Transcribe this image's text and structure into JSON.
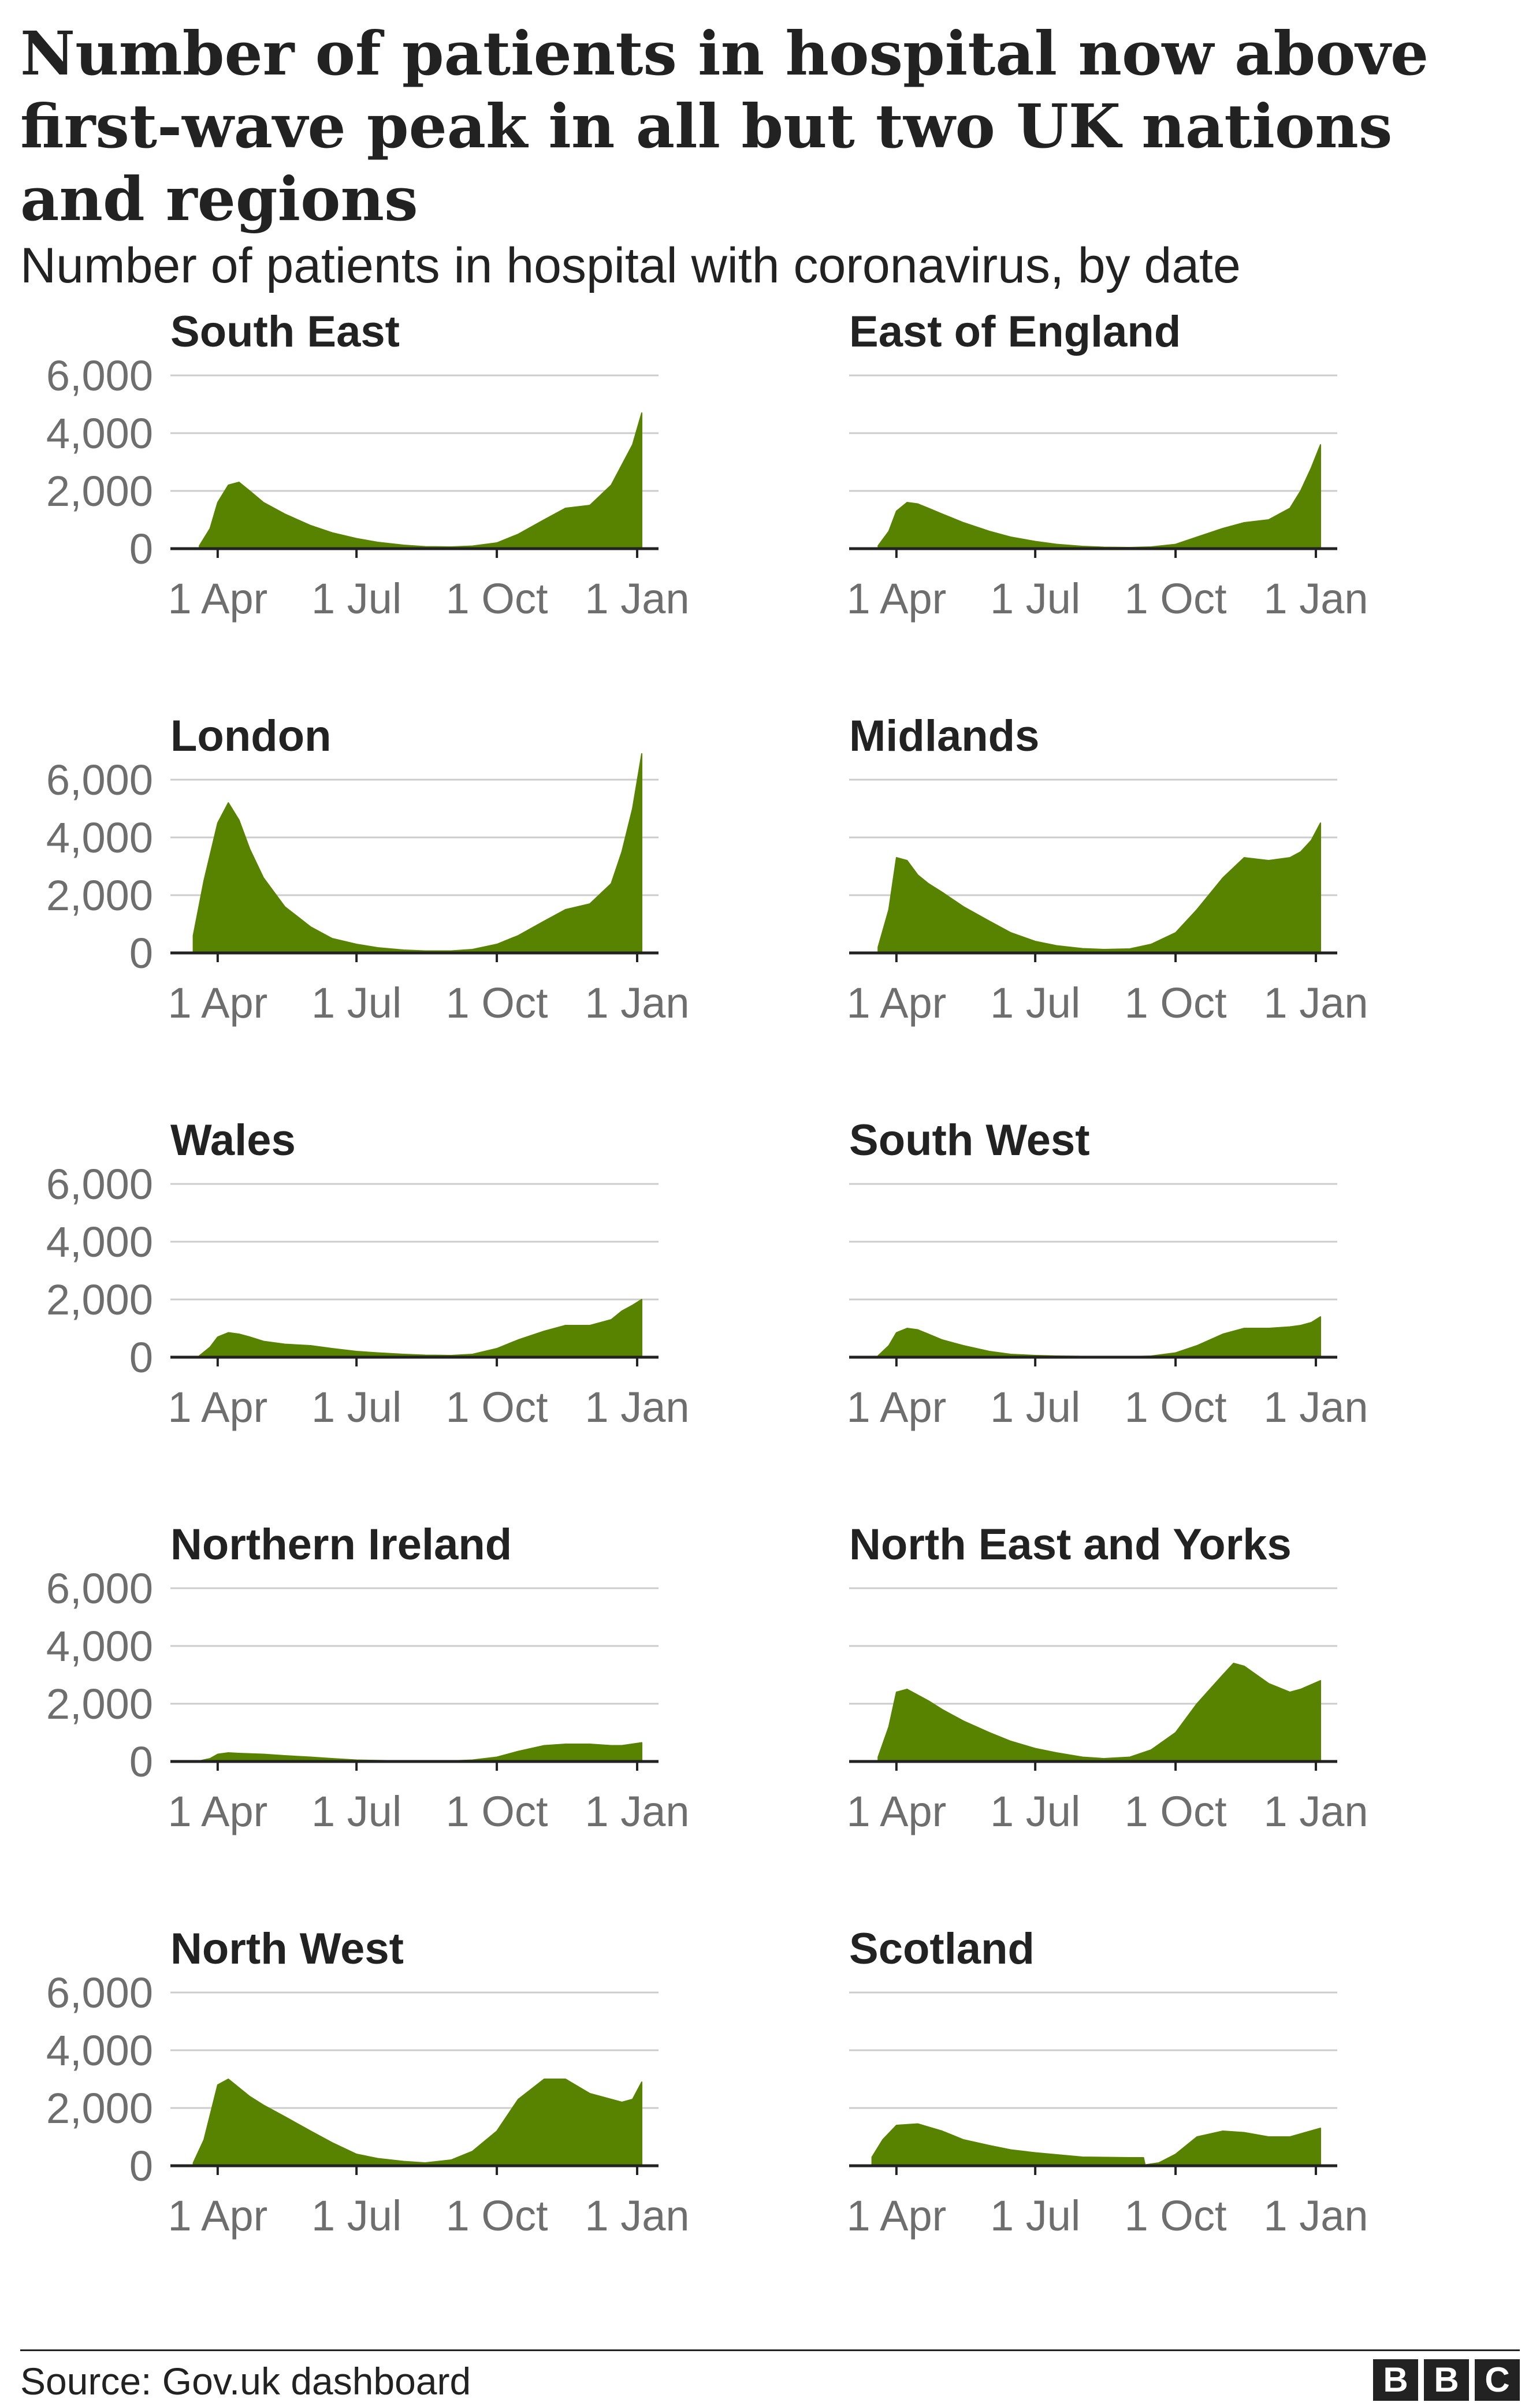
{
  "title": "Number of patients in hospital now above first-wave peak in all but two UK nations and regions",
  "subtitle": "Number of patients in hospital with coronavirus, by date",
  "source": "Source: Gov.uk dashboard",
  "logo": [
    "B",
    "B",
    "C"
  ],
  "colors": {
    "fill": "#588300",
    "grid": "#cccccc",
    "axis": "#222222",
    "tick_label": "#6e6e6e"
  },
  "chart_data": [
    {
      "type": "area",
      "title": "South East",
      "ylim": [
        0,
        6000
      ],
      "yticks": [
        "6,000",
        "4,000",
        "2,000",
        "0"
      ],
      "xticks": [
        "1 Apr",
        "1 Jul",
        "1 Oct",
        "1 Jan"
      ],
      "grid": true,
      "x": [
        "2020-03-20",
        "2020-03-27",
        "2020-04-01",
        "2020-04-08",
        "2020-04-15",
        "2020-04-22",
        "2020-05-01",
        "2020-05-15",
        "2020-06-01",
        "2020-06-15",
        "2020-07-01",
        "2020-07-15",
        "2020-08-01",
        "2020-08-15",
        "2020-09-01",
        "2020-09-15",
        "2020-10-01",
        "2020-10-15",
        "2020-11-01",
        "2020-11-15",
        "2020-12-01",
        "2020-12-15",
        "2020-12-22",
        "2020-12-29",
        "2021-01-04"
      ],
      "y": [
        100,
        700,
        1600,
        2200,
        2300,
        2000,
        1600,
        1200,
        800,
        550,
        350,
        220,
        120,
        70,
        60,
        90,
        200,
        500,
        1000,
        1400,
        1500,
        2200,
        2900,
        3600,
        4700
      ]
    },
    {
      "type": "area",
      "title": "East of England",
      "ylim": [
        0,
        6000
      ],
      "yticks": [
        "6,000",
        "4,000",
        "2,000",
        "0"
      ],
      "xticks": [
        "1 Apr",
        "1 Jul",
        "1 Oct",
        "1 Jan"
      ],
      "grid": true,
      "x": [
        "2020-03-20",
        "2020-03-27",
        "2020-04-01",
        "2020-04-08",
        "2020-04-15",
        "2020-04-22",
        "2020-05-01",
        "2020-05-15",
        "2020-06-01",
        "2020-06-15",
        "2020-07-01",
        "2020-07-15",
        "2020-08-01",
        "2020-08-15",
        "2020-09-01",
        "2020-09-15",
        "2020-10-01",
        "2020-10-15",
        "2020-11-01",
        "2020-11-15",
        "2020-12-01",
        "2020-12-15",
        "2020-12-22",
        "2020-12-29",
        "2021-01-04"
      ],
      "y": [
        100,
        600,
        1300,
        1600,
        1550,
        1400,
        1200,
        900,
        600,
        400,
        250,
        150,
        80,
        50,
        40,
        60,
        150,
        400,
        700,
        900,
        1000,
        1400,
        2000,
        2800,
        3600
      ]
    },
    {
      "type": "area",
      "title": "London",
      "ylim": [
        0,
        6000
      ],
      "yticks": [
        "6,000",
        "4,000",
        "2,000",
        "0"
      ],
      "xticks": [
        "1 Apr",
        "1 Jul",
        "1 Oct",
        "1 Jan"
      ],
      "grid": true,
      "x": [
        "2020-03-16",
        "2020-03-23",
        "2020-04-01",
        "2020-04-08",
        "2020-04-15",
        "2020-04-22",
        "2020-05-01",
        "2020-05-15",
        "2020-06-01",
        "2020-06-15",
        "2020-07-01",
        "2020-07-15",
        "2020-08-01",
        "2020-08-15",
        "2020-09-01",
        "2020-09-15",
        "2020-10-01",
        "2020-10-15",
        "2020-11-01",
        "2020-11-15",
        "2020-12-01",
        "2020-12-15",
        "2020-12-22",
        "2020-12-29",
        "2021-01-04"
      ],
      "y": [
        600,
        2500,
        4500,
        5200,
        4600,
        3600,
        2600,
        1600,
        900,
        500,
        300,
        180,
        100,
        70,
        70,
        120,
        300,
        600,
        1100,
        1500,
        1700,
        2400,
        3500,
        5000,
        6900
      ]
    },
    {
      "type": "area",
      "title": "Midlands",
      "ylim": [
        0,
        6000
      ],
      "yticks": [
        "6,000",
        "4,000",
        "2,000",
        "0"
      ],
      "xticks": [
        "1 Apr",
        "1 Jul",
        "1 Oct",
        "1 Jan"
      ],
      "grid": true,
      "x": [
        "2020-03-20",
        "2020-03-27",
        "2020-04-01",
        "2020-04-08",
        "2020-04-15",
        "2020-04-22",
        "2020-05-01",
        "2020-05-15",
        "2020-06-01",
        "2020-06-15",
        "2020-07-01",
        "2020-07-15",
        "2020-08-01",
        "2020-08-15",
        "2020-09-01",
        "2020-09-15",
        "2020-10-01",
        "2020-10-15",
        "2020-11-01",
        "2020-11-15",
        "2020-12-01",
        "2020-12-15",
        "2020-12-22",
        "2020-12-29",
        "2021-01-04"
      ],
      "y": [
        200,
        1500,
        3300,
        3200,
        2700,
        2400,
        2100,
        1600,
        1100,
        700,
        400,
        250,
        150,
        120,
        140,
        300,
        700,
        1500,
        2600,
        3300,
        3200,
        3300,
        3500,
        3900,
        4500
      ]
    },
    {
      "type": "area",
      "title": "Wales",
      "ylim": [
        0,
        6000
      ],
      "yticks": [
        "6,000",
        "4,000",
        "2,000",
        "0"
      ],
      "xticks": [
        "1 Apr",
        "1 Jul",
        "1 Oct",
        "1 Jan"
      ],
      "grid": true,
      "x": [
        "2020-03-20",
        "2020-03-27",
        "2020-04-01",
        "2020-04-08",
        "2020-04-15",
        "2020-04-22",
        "2020-05-01",
        "2020-05-15",
        "2020-06-01",
        "2020-06-15",
        "2020-07-01",
        "2020-07-15",
        "2020-08-01",
        "2020-08-15",
        "2020-09-01",
        "2020-09-15",
        "2020-10-01",
        "2020-10-15",
        "2020-11-01",
        "2020-11-15",
        "2020-12-01",
        "2020-12-15",
        "2020-12-22",
        "2020-12-29",
        "2021-01-04"
      ],
      "y": [
        50,
        350,
        700,
        850,
        800,
        700,
        550,
        450,
        400,
        300,
        200,
        150,
        100,
        70,
        60,
        100,
        300,
        600,
        900,
        1100,
        1100,
        1300,
        1600,
        1800,
        2000
      ]
    },
    {
      "type": "area",
      "title": "South West",
      "ylim": [
        0,
        6000
      ],
      "yticks": [
        "6,000",
        "4,000",
        "2,000",
        "0"
      ],
      "xticks": [
        "1 Apr",
        "1 Jul",
        "1 Oct",
        "1 Jan"
      ],
      "grid": true,
      "x": [
        "2020-03-20",
        "2020-03-27",
        "2020-04-01",
        "2020-04-08",
        "2020-04-15",
        "2020-04-22",
        "2020-05-01",
        "2020-05-15",
        "2020-06-01",
        "2020-06-15",
        "2020-07-01",
        "2020-07-15",
        "2020-08-01",
        "2020-08-15",
        "2020-09-01",
        "2020-09-15",
        "2020-10-01",
        "2020-10-15",
        "2020-11-01",
        "2020-11-15",
        "2020-12-01",
        "2020-12-15",
        "2020-12-22",
        "2020-12-29",
        "2021-01-04"
      ],
      "y": [
        50,
        400,
        850,
        1000,
        950,
        800,
        600,
        400,
        200,
        100,
        60,
        40,
        30,
        20,
        20,
        40,
        150,
        400,
        800,
        1000,
        1000,
        1050,
        1100,
        1200,
        1400
      ]
    },
    {
      "type": "area",
      "title": "Northern Ireland",
      "ylim": [
        0,
        6000
      ],
      "yticks": [
        "6,000",
        "4,000",
        "2,000",
        "0"
      ],
      "xticks": [
        "1 Apr",
        "1 Jul",
        "1 Oct",
        "1 Jan"
      ],
      "grid": true,
      "x": [
        "2020-03-20",
        "2020-03-27",
        "2020-04-01",
        "2020-04-08",
        "2020-04-15",
        "2020-05-01",
        "2020-05-15",
        "2020-06-01",
        "2020-06-15",
        "2020-07-01",
        "2020-08-01",
        "2020-09-01",
        "2020-09-15",
        "2020-10-01",
        "2020-10-15",
        "2020-11-01",
        "2020-11-15",
        "2020-12-01",
        "2020-12-15",
        "2020-12-22",
        "2021-01-04"
      ],
      "y": [
        20,
        100,
        250,
        300,
        280,
        250,
        200,
        150,
        100,
        50,
        20,
        20,
        50,
        150,
        350,
        550,
        600,
        600,
        550,
        550,
        650
      ]
    },
    {
      "type": "area",
      "title": "North East and Yorks",
      "ylim": [
        0,
        6000
      ],
      "yticks": [
        "6,000",
        "4,000",
        "2,000",
        "0"
      ],
      "xticks": [
        "1 Apr",
        "1 Jul",
        "1 Oct",
        "1 Jan"
      ],
      "grid": true,
      "x": [
        "2020-03-20",
        "2020-03-27",
        "2020-04-01",
        "2020-04-08",
        "2020-04-15",
        "2020-04-22",
        "2020-05-01",
        "2020-05-15",
        "2020-06-01",
        "2020-06-15",
        "2020-07-01",
        "2020-07-15",
        "2020-08-01",
        "2020-08-15",
        "2020-09-01",
        "2020-09-15",
        "2020-10-01",
        "2020-10-15",
        "2020-11-01",
        "2020-11-08",
        "2020-11-15",
        "2020-12-01",
        "2020-12-15",
        "2020-12-22",
        "2021-01-04"
      ],
      "y": [
        150,
        1200,
        2400,
        2500,
        2300,
        2100,
        1800,
        1400,
        1000,
        700,
        450,
        300,
        150,
        100,
        150,
        400,
        1000,
        2000,
        3000,
        3400,
        3300,
        2700,
        2400,
        2500,
        2800
      ]
    },
    {
      "type": "area",
      "title": "North West",
      "ylim": [
        0,
        6000
      ],
      "yticks": [
        "6,000",
        "4,000",
        "2,000",
        "0"
      ],
      "xticks": [
        "1 Apr",
        "1 Jul",
        "1 Oct",
        "1 Jan"
      ],
      "grid": true,
      "x": [
        "2020-03-16",
        "2020-03-23",
        "2020-04-01",
        "2020-04-08",
        "2020-04-15",
        "2020-04-22",
        "2020-05-01",
        "2020-05-15",
        "2020-06-01",
        "2020-06-15",
        "2020-07-01",
        "2020-07-15",
        "2020-08-01",
        "2020-08-15",
        "2020-09-01",
        "2020-09-15",
        "2020-10-01",
        "2020-10-15",
        "2020-11-01",
        "2020-11-15",
        "2020-12-01",
        "2020-12-15",
        "2020-12-22",
        "2020-12-29",
        "2021-01-04"
      ],
      "y": [
        100,
        900,
        2800,
        3000,
        2700,
        2400,
        2100,
        1700,
        1200,
        800,
        400,
        250,
        150,
        100,
        200,
        500,
        1200,
        2300,
        3000,
        3000,
        2500,
        2300,
        2200,
        2300,
        2900
      ]
    },
    {
      "type": "area",
      "title": "Scotland",
      "ylim": [
        0,
        6000
      ],
      "yticks": [
        "6,000",
        "4,000",
        "2,000",
        "0"
      ],
      "xticks": [
        "1 Apr",
        "1 Jul",
        "1 Oct",
        "1 Jan"
      ],
      "grid": true,
      "x": [
        "2020-03-16",
        "2020-03-23",
        "2020-04-01",
        "2020-04-15",
        "2020-05-01",
        "2020-05-15",
        "2020-06-01",
        "2020-06-15",
        "2020-07-01",
        "2020-08-01",
        "2020-09-01",
        "2020-09-10",
        "2020-09-11",
        "2020-09-20",
        "2020-10-01",
        "2020-10-15",
        "2020-11-01",
        "2020-11-15",
        "2020-12-01",
        "2020-12-15",
        "2021-01-04"
      ],
      "y": [
        300,
        900,
        1400,
        1450,
        1200,
        900,
        700,
        550,
        450,
        300,
        280,
        280,
        30,
        100,
        400,
        1000,
        1200,
        1150,
        1000,
        1000,
        1300
      ]
    }
  ]
}
